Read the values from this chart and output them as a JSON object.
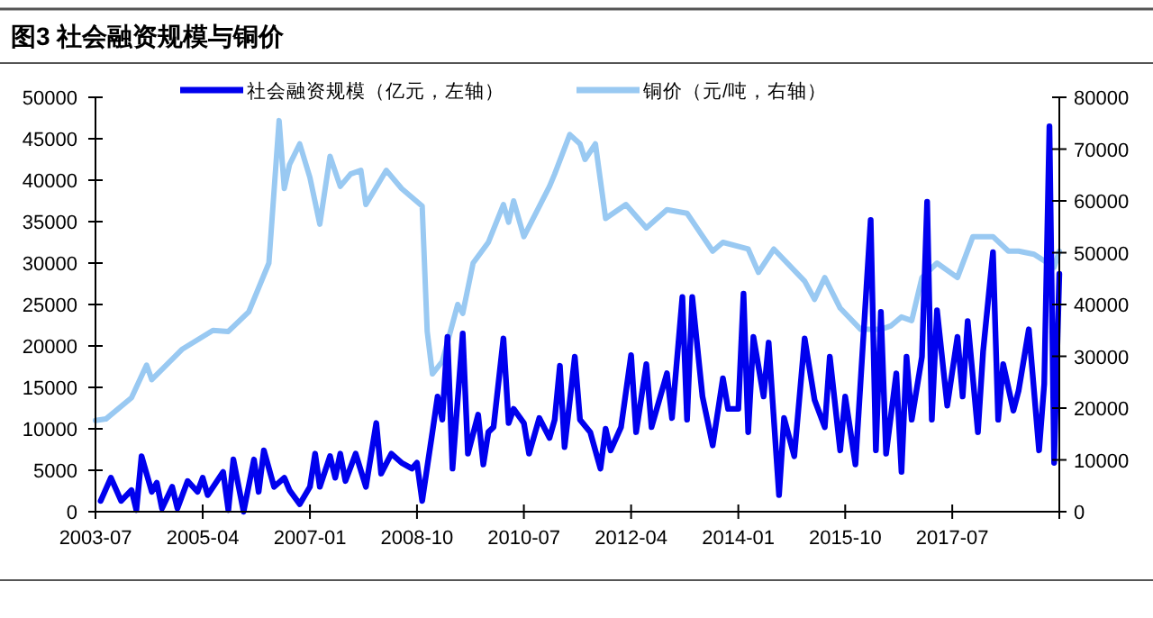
{
  "chart_data": {
    "type": "line",
    "title": "图3  社会融资规模与铜价",
    "legend": "top",
    "grid": false,
    "marker": "none",
    "line_style": "solid",
    "xlim": [
      "2003-07",
      "2019-04"
    ],
    "xticks": [
      "2003-07",
      "2005-04",
      "2007-01",
      "2008-10",
      "2010-07",
      "2012-04",
      "2014-01",
      "2015-10",
      "2017-07",
      {
        "value": "2019-04",
        "label": null
      }
    ],
    "ylim": [
      0,
      50000
    ],
    "yticks": [
      0,
      5000,
      10000,
      15000,
      20000,
      25000,
      30000,
      35000,
      40000,
      45000,
      50000
    ],
    "y2lim": [
      0,
      80000
    ],
    "y2ticks": [
      0,
      10000,
      20000,
      30000,
      40000,
      50000,
      60000,
      70000,
      80000
    ],
    "series": [
      {
        "name": "社会融资规模（亿元，左轴）",
        "color": "#0000ee",
        "axis": "y",
        "x": [
          "2003-08",
          "2003-10",
          "2003-12",
          "2004-02",
          "2004-03",
          "2004-04",
          "2004-06",
          "2004-07",
          "2004-08",
          "2004-10",
          "2004-11",
          "2005-01",
          "2005-03",
          "2005-04",
          "2005-05",
          "2005-08",
          "2005-09",
          "2005-10",
          "2005-12",
          "2006-02",
          "2006-03",
          "2006-04",
          "2006-06",
          "2006-08",
          "2006-09",
          "2006-11",
          "2007-01",
          "2007-02",
          "2007-03",
          "2007-05",
          "2007-06",
          "2007-07",
          "2007-08",
          "2007-10",
          "2007-12",
          "2008-02",
          "2008-03",
          "2008-05",
          "2008-07",
          "2008-09",
          "2008-10",
          "2008-11",
          "2009-01",
          "2009-02",
          "2009-03",
          "2009-04",
          "2009-05",
          "2009-07",
          "2009-08",
          "2009-10",
          "2009-11",
          "2009-12",
          "2010-01",
          "2010-03",
          "2010-04",
          "2010-05",
          "2010-07",
          "2010-08",
          "2010-10",
          "2010-12",
          "2011-01",
          "2011-02",
          "2011-03",
          "2011-05",
          "2011-06",
          "2011-08",
          "2011-10",
          "2011-11",
          "2011-12",
          "2012-02",
          "2012-04",
          "2012-05",
          "2012-07",
          "2012-08",
          "2012-11",
          "2012-12",
          "2013-02",
          "2013-03",
          "2013-04",
          "2013-06",
          "2013-08",
          "2013-10",
          "2013-11",
          "2014-01",
          "2014-02",
          "2014-03",
          "2014-04",
          "2014-06",
          "2014-07",
          "2014-09",
          "2014-10",
          "2014-12",
          "2015-02",
          "2015-04",
          "2015-06",
          "2015-07",
          "2015-09",
          "2015-10",
          "2015-12",
          "2016-03",
          "2016-04",
          "2016-05",
          "2016-06",
          "2016-08",
          "2016-09",
          "2016-10",
          "2016-11",
          "2017-01",
          "2017-02",
          "2017-03",
          "2017-04",
          "2017-06",
          "2017-08",
          "2017-09",
          "2017-10",
          "2017-12",
          "2018-01",
          "2018-03",
          "2018-04",
          "2018-05",
          "2018-07",
          "2018-08",
          "2018-10",
          "2018-12",
          "2019-01",
          "2019-02",
          "2019-03",
          "2019-04"
        ],
        "values": [
          1300,
          4100,
          1300,
          2600,
          200,
          6700,
          2400,
          3500,
          400,
          3000,
          400,
          3700,
          2400,
          4100,
          2000,
          4800,
          200,
          6300,
          0,
          6300,
          2400,
          7400,
          3000,
          4100,
          2600,
          900,
          3000,
          7000,
          3000,
          6700,
          4100,
          7000,
          3700,
          7000,
          3000,
          10700,
          4600,
          7000,
          5900,
          5200,
          5900,
          1300,
          9600,
          13900,
          11100,
          21100,
          5200,
          21500,
          7000,
          11700,
          5700,
          9600,
          10200,
          20900,
          10700,
          12400,
          10700,
          7000,
          11300,
          8900,
          11100,
          17600,
          7800,
          18700,
          11100,
          9600,
          5200,
          10000,
          7400,
          10200,
          18900,
          9600,
          17800,
          10200,
          16700,
          11300,
          25900,
          11100,
          25900,
          13900,
          8000,
          16100,
          12400,
          12400,
          26300,
          9600,
          21100,
          13900,
          20400,
          2000,
          11300,
          6700,
          20900,
          13500,
          10200,
          18700,
          7400,
          13900,
          5700,
          35200,
          7400,
          24100,
          7000,
          16700,
          4800,
          18700,
          11100,
          18700,
          37400,
          11100,
          24300,
          12800,
          21100,
          13900,
          23000,
          9600,
          19300,
          31300,
          11100,
          17800,
          12200,
          14600,
          22000,
          7400,
          15400,
          46500,
          5900,
          28700
        ]
      },
      {
        "name": "铜价（元/吨，右轴）",
        "color": "#99c9f2",
        "axis": "y2",
        "x": [
          "2003-07",
          "2003-09",
          "2004-02",
          "2004-05",
          "2004-06",
          "2004-12",
          "2005-06",
          "2005-09",
          "2006-01",
          "2006-05",
          "2006-07",
          "2006-08",
          "2006-09",
          "2006-11",
          "2007-01",
          "2007-03",
          "2007-05",
          "2007-07",
          "2007-09",
          "2007-11",
          "2007-12",
          "2008-04",
          "2008-07",
          "2008-11",
          "2008-12",
          "2009-01",
          "2009-03",
          "2009-06",
          "2009-07",
          "2009-09",
          "2009-12",
          "2010-03",
          "2010-04",
          "2010-05",
          "2010-07",
          "2010-12",
          "2011-01",
          "2011-04",
          "2011-06",
          "2011-07",
          "2011-09",
          "2011-11",
          "2012-03",
          "2012-07",
          "2012-11",
          "2013-03",
          "2013-08",
          "2013-10",
          "2014-03",
          "2014-05",
          "2014-08",
          "2015-02",
          "2015-04",
          "2015-06",
          "2015-09",
          "2016-01",
          "2016-05",
          "2016-07",
          "2016-09",
          "2016-11",
          "2017-01",
          "2017-04",
          "2017-08",
          "2017-11",
          "2018-03",
          "2018-06",
          "2018-08",
          "2018-11",
          "2019-03",
          "2019-04"
        ],
        "values": [
          17600,
          17900,
          22000,
          28300,
          25500,
          31400,
          35000,
          34800,
          38600,
          48000,
          75500,
          62400,
          67000,
          71000,
          64500,
          55500,
          68600,
          62800,
          65200,
          65900,
          59300,
          65900,
          62400,
          59000,
          34800,
          26600,
          29000,
          40000,
          38300,
          48000,
          52000,
          59300,
          55900,
          60000,
          53100,
          62800,
          65200,
          72800,
          71000,
          68000,
          71000,
          56600,
          59300,
          54800,
          58300,
          57600,
          50300,
          52000,
          50700,
          46200,
          50700,
          44500,
          41000,
          45200,
          39300,
          35200,
          35200,
          35900,
          37600,
          36900,
          45200,
          48000,
          45200,
          53100,
          53100,
          50300,
          50300,
          49700,
          47200,
          50300
        ]
      }
    ]
  }
}
